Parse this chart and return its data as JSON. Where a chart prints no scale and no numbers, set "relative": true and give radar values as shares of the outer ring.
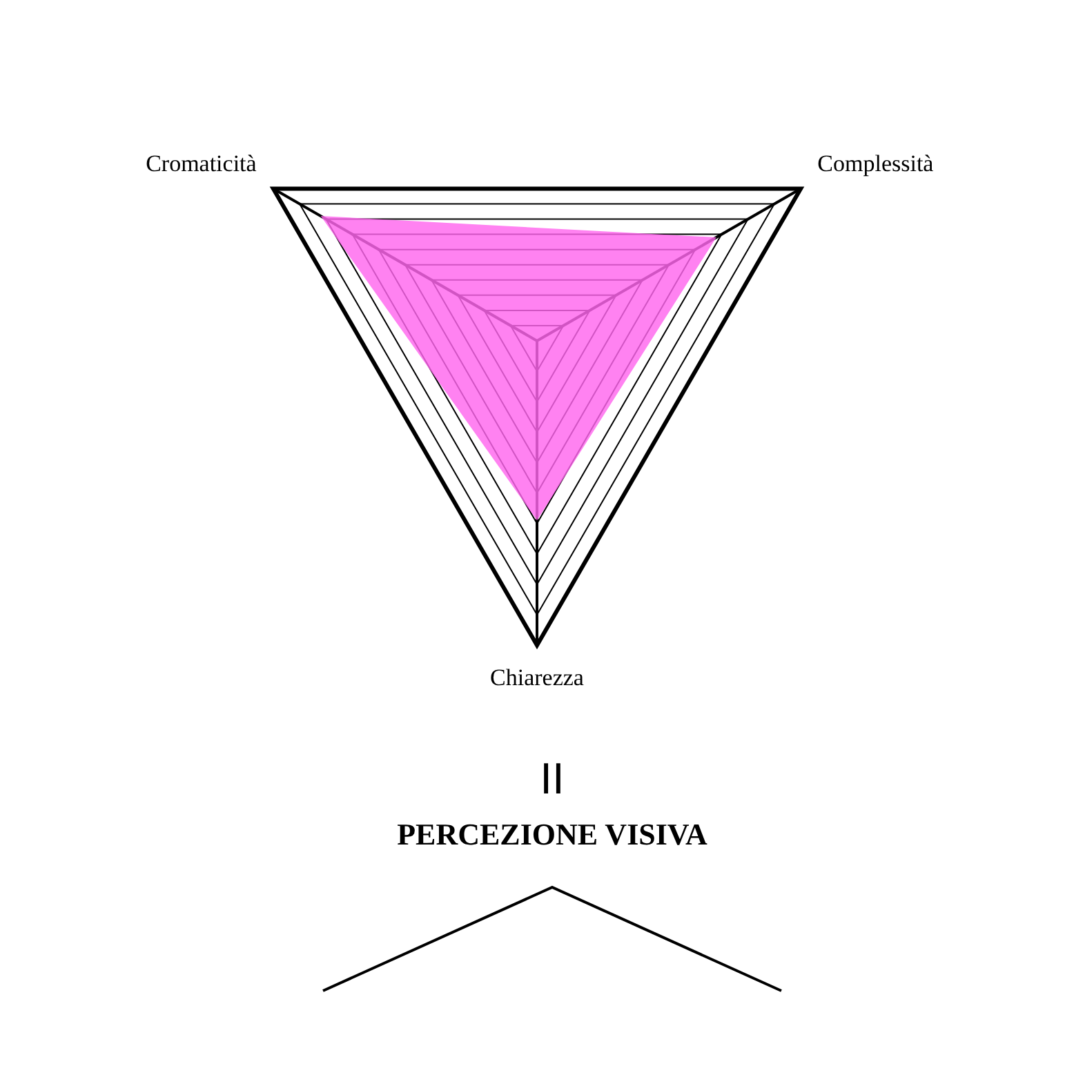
{
  "chart_data": {
    "type": "radar",
    "relative": true,
    "categories": [
      "Cromaticità",
      "Complessità",
      "Chiarezza"
    ],
    "series": [
      {
        "color": "#ff66ee",
        "values": [
          0.82,
          0.68,
          0.59
        ]
      }
    ],
    "grid": true,
    "legend": false,
    "annotations": [
      "II",
      "PERCEZIONE VISIVA"
    ]
  }
}
